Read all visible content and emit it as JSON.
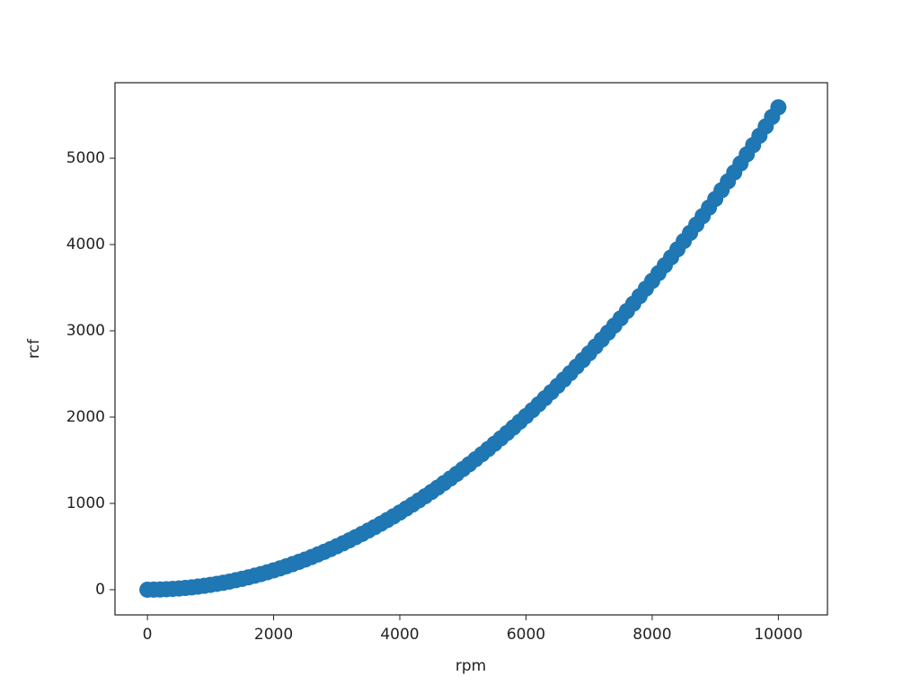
{
  "chart_data": {
    "type": "scatter",
    "xlabel": "rpm",
    "ylabel": "rcf",
    "color": "#1f77b4",
    "x": [
      0,
      100,
      200,
      300,
      400,
      500,
      600,
      700,
      800,
      900,
      1000,
      1100,
      1200,
      1300,
      1400,
      1500,
      1600,
      1700,
      1800,
      1900,
      2000,
      2100,
      2200,
      2300,
      2400,
      2500,
      2600,
      2700,
      2800,
      2900,
      3000,
      3100,
      3200,
      3300,
      3400,
      3500,
      3600,
      3700,
      3800,
      3900,
      4000,
      4100,
      4200,
      4300,
      4400,
      4500,
      4600,
      4700,
      4800,
      4900,
      5000,
      5100,
      5200,
      5300,
      5400,
      5500,
      5600,
      5700,
      5800,
      5900,
      6000,
      6100,
      6200,
      6300,
      6400,
      6500,
      6600,
      6700,
      6800,
      6900,
      7000,
      7100,
      7200,
      7300,
      7400,
      7500,
      7600,
      7700,
      7800,
      7900,
      8000,
      8100,
      8200,
      8300,
      8400,
      8500,
      8600,
      8700,
      8800,
      8900,
      9000,
      9100,
      9200,
      9300,
      9400,
      9500,
      9600,
      9700,
      9800,
      9900,
      10000
    ],
    "values": [
      0,
      1,
      2,
      5,
      9,
      14,
      20,
      27,
      36,
      45,
      56,
      68,
      80,
      94,
      110,
      126,
      143,
      162,
      181,
      202,
      224,
      247,
      271,
      296,
      322,
      349,
      378,
      408,
      438,
      470,
      503,
      537,
      572,
      609,
      646,
      685,
      724,
      765,
      807,
      850,
      894,
      940,
      986,
      1034,
      1082,
      1132,
      1183,
      1235,
      1288,
      1342,
      1398,
      1454,
      1512,
      1570,
      1630,
      1691,
      1753,
      1816,
      1880,
      1946,
      2012,
      2080,
      2149,
      2219,
      2290,
      2362,
      2435,
      2509,
      2585,
      2661,
      2739,
      2818,
      2898,
      2979,
      3061,
      3144,
      3229,
      3314,
      3401,
      3489,
      3578,
      3668,
      3759,
      3851,
      3944,
      4039,
      4134,
      4231,
      4329,
      4428,
      4528,
      4629,
      4731,
      4835,
      4939,
      5045,
      5152,
      5260,
      5369,
      5479,
      5590
    ],
    "xlim": [
      -514,
      10778
    ],
    "ylim": [
      -292,
      5875
    ],
    "xticks": [
      0,
      2000,
      4000,
      6000,
      8000,
      10000
    ],
    "yticks": [
      0,
      1000,
      2000,
      3000,
      4000,
      5000
    ]
  }
}
